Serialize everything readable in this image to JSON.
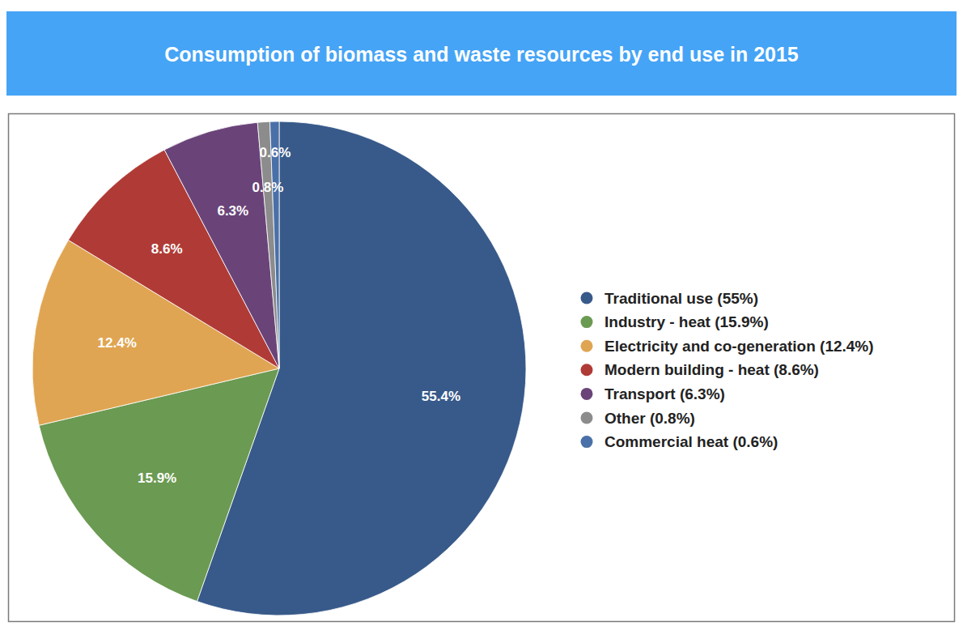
{
  "chart_data": {
    "type": "pie",
    "title": "Consumption of biomass and waste resources by end use in 2015",
    "categories": [
      "Traditional use (55%)",
      "Industry - heat (15.9%)",
      "Electricity and co-generation (12.4%)",
      "Modern building - heat (8.6%)",
      "Transport (6.3%)",
      "Other (0.8%)",
      "Commercial heat (0.6%)"
    ],
    "values": [
      55.4,
      15.9,
      12.4,
      8.6,
      6.3,
      0.8,
      0.6
    ],
    "value_labels": [
      "55.4%",
      "15.9%",
      "12.4%",
      "8.6%",
      "6.3%",
      "0.8%",
      "0.6%"
    ],
    "colors": [
      "#385a8a",
      "#6b9a52",
      "#e0a552",
      "#b03b36",
      "#6a4479",
      "#8c8c8c",
      "#4a70a8"
    ],
    "data_labels": true,
    "legend": "right"
  }
}
